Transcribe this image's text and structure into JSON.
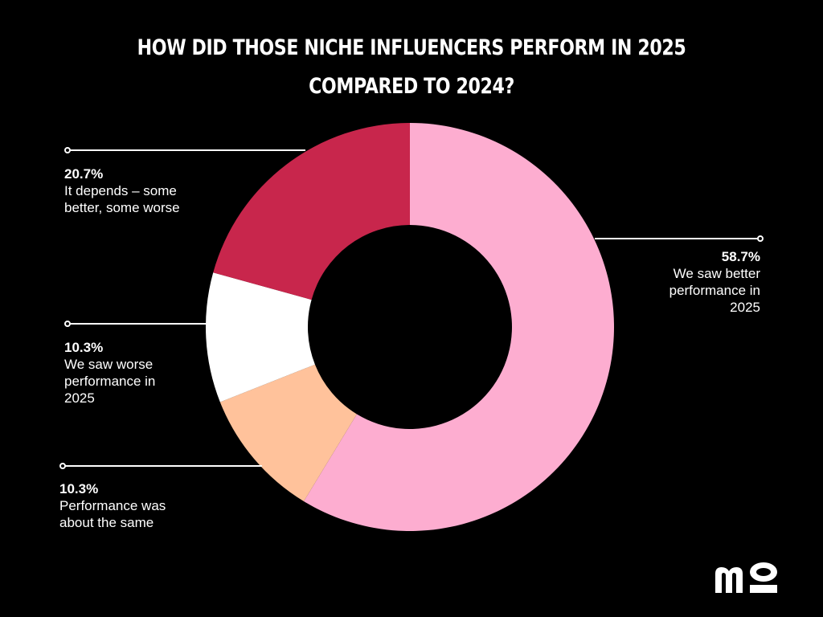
{
  "chart_data": {
    "type": "pie",
    "donut": true,
    "title_lines": [
      "HOW DID THOSE NICHE INFLUENCERS PERFORM IN 2025",
      "COMPARED TO 2024?"
    ],
    "slices": [
      {
        "value": 58.7,
        "value_label": "58.7%",
        "label_lines": [
          "We saw better",
          "performance in",
          "2025"
        ],
        "color": "#FDADD0"
      },
      {
        "value": 10.3,
        "value_label": "10.3%",
        "label_lines": [
          "Performance was",
          "about the same"
        ],
        "color": "#FFC29B"
      },
      {
        "value": 10.3,
        "value_label": "10.3%",
        "label_lines": [
          "We saw worse",
          "performance in",
          "2025"
        ],
        "color": "#FFFFFF"
      },
      {
        "value": 20.7,
        "value_label": "20.7%",
        "label_lines": [
          "It depends – some",
          "better, some worse"
        ],
        "color": "#C8264C"
      }
    ],
    "legend": "none",
    "grid": false
  },
  "colors": {
    "background": "#000000",
    "text": "#FFFFFF",
    "leader_line": "#FFFFFF"
  },
  "brand": {
    "logo_icon": "mo-logo-icon",
    "logo_text": "mo"
  }
}
